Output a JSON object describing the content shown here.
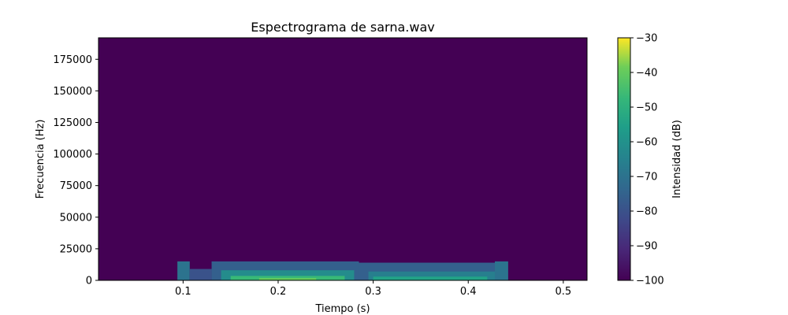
{
  "chart_data": {
    "type": "heatmap",
    "title": "Espectrograma de sarna.wav",
    "xlabel": "Tiempo (s)",
    "ylabel": "Frecuencia (Hz)",
    "xlim": [
      0.011,
      0.525
    ],
    "ylim": [
      0,
      192000
    ],
    "x_ticks": [
      0.1,
      0.2,
      0.3,
      0.4,
      0.5
    ],
    "x_tick_labels": [
      "0.1",
      "0.2",
      "0.3",
      "0.4",
      "0.5"
    ],
    "y_ticks": [
      0,
      25000,
      50000,
      75000,
      100000,
      125000,
      150000,
      175000
    ],
    "y_tick_labels": [
      "0",
      "25000",
      "50000",
      "75000",
      "100000",
      "125000",
      "150000",
      "175000"
    ],
    "colormap": "viridis",
    "colorbar": {
      "label": "Intensidad (dB)",
      "range": [
        -100,
        -30
      ],
      "ticks": [
        -30,
        -40,
        -50,
        -60,
        -70,
        -80,
        -90,
        -100
      ],
      "tick_labels": [
        "−30",
        "−40",
        "−50",
        "−60",
        "−70",
        "−80",
        "−90",
        "−100"
      ]
    },
    "background_db": -100,
    "regions": [
      {
        "t_start": 0.094,
        "t_end": 0.107,
        "f_max": 15000,
        "db": -70
      },
      {
        "t_start": 0.107,
        "t_end": 0.13,
        "f_max": 9000,
        "db": -80
      },
      {
        "t_start": 0.13,
        "t_end": 0.285,
        "f_max": 15000,
        "db": -76
      },
      {
        "t_start": 0.14,
        "t_end": 0.28,
        "f_max": 8000,
        "db": -62
      },
      {
        "t_start": 0.15,
        "t_end": 0.27,
        "f_max": 3500,
        "db": -47
      },
      {
        "t_start": 0.18,
        "t_end": 0.24,
        "f_max": 1800,
        "db": -40
      },
      {
        "t_start": 0.285,
        "t_end": 0.44,
        "f_max": 14000,
        "db": -76
      },
      {
        "t_start": 0.295,
        "t_end": 0.43,
        "f_max": 7000,
        "db": -66
      },
      {
        "t_start": 0.3,
        "t_end": 0.42,
        "f_max": 3000,
        "db": -55
      },
      {
        "t_start": 0.428,
        "t_end": 0.442,
        "f_max": 15000,
        "db": -70
      }
    ]
  }
}
